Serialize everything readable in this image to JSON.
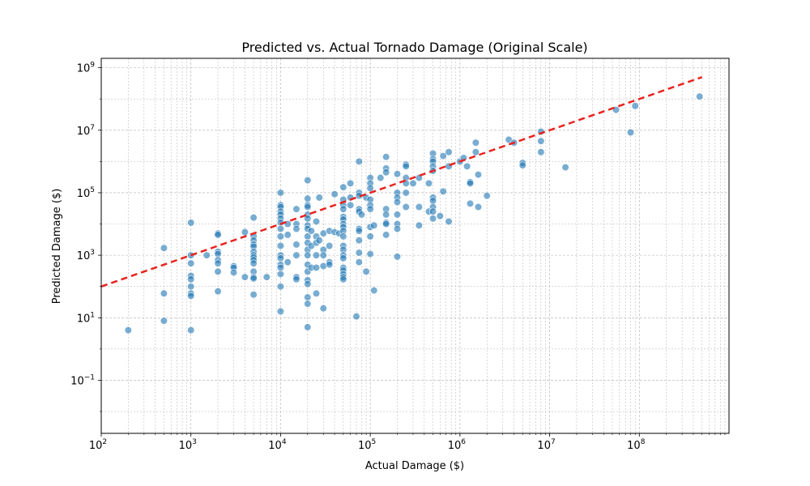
{
  "chart_data": {
    "type": "scatter",
    "title": "Predicted vs. Actual Tornado Damage (Original Scale)",
    "xlabel": "Actual Damage ($)",
    "ylabel": "Predicted Damage ($)",
    "xscale": "log",
    "yscale": "log",
    "xlim": [
      100,
      1000000000
    ],
    "ylim": [
      0.002,
      2000000000
    ],
    "x_ticks": [
      {
        "value": 100,
        "base": "10",
        "exp": "2"
      },
      {
        "value": 1000,
        "base": "10",
        "exp": "3"
      },
      {
        "value": 10000,
        "base": "10",
        "exp": "4"
      },
      {
        "value": 100000,
        "base": "10",
        "exp": "5"
      },
      {
        "value": 1000000,
        "base": "10",
        "exp": "6"
      },
      {
        "value": 10000000,
        "base": "10",
        "exp": "7"
      },
      {
        "value": 100000000,
        "base": "10",
        "exp": "8"
      }
    ],
    "y_ticks": [
      {
        "value": 0.1,
        "base": "10",
        "exp": "−1"
      },
      {
        "value": 10,
        "base": "10",
        "exp": "1"
      },
      {
        "value": 1000,
        "base": "10",
        "exp": "3"
      },
      {
        "value": 100000,
        "base": "10",
        "exp": "5"
      },
      {
        "value": 10000000,
        "base": "10",
        "exp": "7"
      },
      {
        "value": 1000000000,
        "base": "10",
        "exp": "9"
      }
    ],
    "grid": true,
    "point_color": "#1f77b4",
    "reference_line": {
      "style": "dashed",
      "color": "#e8231f",
      "x": [
        100,
        500000000
      ],
      "y": [
        100,
        500000000
      ]
    },
    "points": [
      {
        "x": 200,
        "y": 4
      },
      {
        "x": 500,
        "y": 1700
      },
      {
        "x": 500,
        "y": 60
      },
      {
        "x": 500,
        "y": 8
      },
      {
        "x": 1000,
        "y": 11000
      },
      {
        "x": 1000,
        "y": 1000
      },
      {
        "x": 1000,
        "y": 550
      },
      {
        "x": 1000,
        "y": 220
      },
      {
        "x": 1000,
        "y": 170
      },
      {
        "x": 1000,
        "y": 100
      },
      {
        "x": 1000,
        "y": 60
      },
      {
        "x": 1000,
        "y": 50
      },
      {
        "x": 1000,
        "y": 4
      },
      {
        "x": 1500,
        "y": 1000
      },
      {
        "x": 2000,
        "y": 5000
      },
      {
        "x": 2000,
        "y": 4500
      },
      {
        "x": 2000,
        "y": 1300
      },
      {
        "x": 2000,
        "y": 1100
      },
      {
        "x": 2000,
        "y": 700
      },
      {
        "x": 2000,
        "y": 550
      },
      {
        "x": 2000,
        "y": 300
      },
      {
        "x": 2000,
        "y": 70
      },
      {
        "x": 3000,
        "y": 450
      },
      {
        "x": 3000,
        "y": 400
      },
      {
        "x": 3000,
        "y": 280
      },
      {
        "x": 4000,
        "y": 5500
      },
      {
        "x": 4000,
        "y": 200
      },
      {
        "x": 5000,
        "y": 16000
      },
      {
        "x": 5000,
        "y": 4000
      },
      {
        "x": 5000,
        "y": 3000
      },
      {
        "x": 5000,
        "y": 2200
      },
      {
        "x": 5000,
        "y": 1900
      },
      {
        "x": 5000,
        "y": 1300
      },
      {
        "x": 5000,
        "y": 1000
      },
      {
        "x": 5000,
        "y": 850
      },
      {
        "x": 5000,
        "y": 700
      },
      {
        "x": 5000,
        "y": 550
      },
      {
        "x": 5000,
        "y": 300
      },
      {
        "x": 5000,
        "y": 200
      },
      {
        "x": 5000,
        "y": 180
      },
      {
        "x": 5000,
        "y": 55
      },
      {
        "x": 7000,
        "y": 200
      },
      {
        "x": 10000,
        "y": 100000
      },
      {
        "x": 10000,
        "y": 40000
      },
      {
        "x": 10000,
        "y": 35000
      },
      {
        "x": 10000,
        "y": 25000
      },
      {
        "x": 10000,
        "y": 20000
      },
      {
        "x": 10000,
        "y": 15000
      },
      {
        "x": 10000,
        "y": 11000
      },
      {
        "x": 10000,
        "y": 7000
      },
      {
        "x": 10000,
        "y": 4000
      },
      {
        "x": 10000,
        "y": 2000
      },
      {
        "x": 10000,
        "y": 1000
      },
      {
        "x": 10000,
        "y": 800
      },
      {
        "x": 10000,
        "y": 500
      },
      {
        "x": 10000,
        "y": 400
      },
      {
        "x": 10000,
        "y": 250
      },
      {
        "x": 10000,
        "y": 100
      },
      {
        "x": 10000,
        "y": 16
      },
      {
        "x": 12000,
        "y": 10000
      },
      {
        "x": 12000,
        "y": 4500
      },
      {
        "x": 12000,
        "y": 600
      },
      {
        "x": 15000,
        "y": 30000
      },
      {
        "x": 15000,
        "y": 10000
      },
      {
        "x": 15000,
        "y": 7000
      },
      {
        "x": 15000,
        "y": 2200
      },
      {
        "x": 15000,
        "y": 1000
      },
      {
        "x": 15000,
        "y": 200
      },
      {
        "x": 15000,
        "y": 170
      },
      {
        "x": 20000,
        "y": 250000
      },
      {
        "x": 20000,
        "y": 65000
      },
      {
        "x": 20000,
        "y": 40000
      },
      {
        "x": 20000,
        "y": 35000
      },
      {
        "x": 20000,
        "y": 20000
      },
      {
        "x": 20000,
        "y": 15000
      },
      {
        "x": 20000,
        "y": 9000
      },
      {
        "x": 20000,
        "y": 7000
      },
      {
        "x": 20000,
        "y": 4000
      },
      {
        "x": 20000,
        "y": 2500
      },
      {
        "x": 20000,
        "y": 1500
      },
      {
        "x": 20000,
        "y": 1000
      },
      {
        "x": 20000,
        "y": 500
      },
      {
        "x": 20000,
        "y": 300
      },
      {
        "x": 20000,
        "y": 160
      },
      {
        "x": 20000,
        "y": 120
      },
      {
        "x": 20000,
        "y": 45
      },
      {
        "x": 20000,
        "y": 28
      },
      {
        "x": 20000,
        "y": 5
      },
      {
        "x": 22000,
        "y": 6000
      },
      {
        "x": 22000,
        "y": 2000
      },
      {
        "x": 22000,
        "y": 400
      },
      {
        "x": 25000,
        "y": 12000
      },
      {
        "x": 25000,
        "y": 4000
      },
      {
        "x": 25000,
        "y": 2500
      },
      {
        "x": 25000,
        "y": 1000
      },
      {
        "x": 25000,
        "y": 400
      },
      {
        "x": 25000,
        "y": 60
      },
      {
        "x": 27000,
        "y": 70000
      },
      {
        "x": 27000,
        "y": 3000
      },
      {
        "x": 30000,
        "y": 5000
      },
      {
        "x": 30000,
        "y": 1500
      },
      {
        "x": 30000,
        "y": 1000
      },
      {
        "x": 30000,
        "y": 450
      },
      {
        "x": 30000,
        "y": 20
      },
      {
        "x": 35000,
        "y": 6000
      },
      {
        "x": 35000,
        "y": 2000
      },
      {
        "x": 35000,
        "y": 600
      },
      {
        "x": 35000,
        "y": 500
      },
      {
        "x": 40000,
        "y": 90000
      },
      {
        "x": 40000,
        "y": 5500
      },
      {
        "x": 45000,
        "y": 5000
      },
      {
        "x": 50000,
        "y": 150000
      },
      {
        "x": 50000,
        "y": 60000
      },
      {
        "x": 50000,
        "y": 40000
      },
      {
        "x": 50000,
        "y": 30000
      },
      {
        "x": 50000,
        "y": 17000
      },
      {
        "x": 50000,
        "y": 14000
      },
      {
        "x": 50000,
        "y": 10000
      },
      {
        "x": 50000,
        "y": 8000
      },
      {
        "x": 50000,
        "y": 6000
      },
      {
        "x": 50000,
        "y": 4000
      },
      {
        "x": 50000,
        "y": 2000
      },
      {
        "x": 50000,
        "y": 1500
      },
      {
        "x": 50000,
        "y": 1000
      },
      {
        "x": 50000,
        "y": 800
      },
      {
        "x": 50000,
        "y": 400
      },
      {
        "x": 50000,
        "y": 330
      },
      {
        "x": 50000,
        "y": 250
      },
      {
        "x": 50000,
        "y": 200
      },
      {
        "x": 50000,
        "y": 170
      },
      {
        "x": 60000,
        "y": 70000
      },
      {
        "x": 60000,
        "y": 40000
      },
      {
        "x": 60000,
        "y": 200000
      },
      {
        "x": 70000,
        "y": 11
      },
      {
        "x": 75000,
        "y": 1000000
      },
      {
        "x": 75000,
        "y": 100000
      },
      {
        "x": 75000,
        "y": 80000
      },
      {
        "x": 75000,
        "y": 30000
      },
      {
        "x": 75000,
        "y": 25000
      },
      {
        "x": 75000,
        "y": 7000
      },
      {
        "x": 75000,
        "y": 6000
      },
      {
        "x": 75000,
        "y": 3000
      },
      {
        "x": 75000,
        "y": 1200
      },
      {
        "x": 75000,
        "y": 600
      },
      {
        "x": 80000,
        "y": 20000
      },
      {
        "x": 90000,
        "y": 300
      },
      {
        "x": 90000,
        "y": 70000
      },
      {
        "x": 100000,
        "y": 300000
      },
      {
        "x": 100000,
        "y": 200000
      },
      {
        "x": 100000,
        "y": 140000
      },
      {
        "x": 100000,
        "y": 60000
      },
      {
        "x": 100000,
        "y": 40000
      },
      {
        "x": 100000,
        "y": 30000
      },
      {
        "x": 100000,
        "y": 8000
      },
      {
        "x": 100000,
        "y": 4000
      },
      {
        "x": 100000,
        "y": 1100
      },
      {
        "x": 110000,
        "y": 9000
      },
      {
        "x": 110000,
        "y": 75
      },
      {
        "x": 130000,
        "y": 300000
      },
      {
        "x": 150000,
        "y": 1400000
      },
      {
        "x": 150000,
        "y": 600000
      },
      {
        "x": 150000,
        "y": 450000
      },
      {
        "x": 150000,
        "y": 30000
      },
      {
        "x": 150000,
        "y": 20000
      },
      {
        "x": 150000,
        "y": 11000
      },
      {
        "x": 150000,
        "y": 10000
      },
      {
        "x": 150000,
        "y": 4500
      },
      {
        "x": 200000,
        "y": 400000
      },
      {
        "x": 200000,
        "y": 100000
      },
      {
        "x": 200000,
        "y": 70000
      },
      {
        "x": 200000,
        "y": 50000
      },
      {
        "x": 200000,
        "y": 20000
      },
      {
        "x": 200000,
        "y": 10000
      },
      {
        "x": 200000,
        "y": 7000
      },
      {
        "x": 200000,
        "y": 900
      },
      {
        "x": 250000,
        "y": 800000
      },
      {
        "x": 250000,
        "y": 700000
      },
      {
        "x": 250000,
        "y": 300000
      },
      {
        "x": 250000,
        "y": 200000
      },
      {
        "x": 250000,
        "y": 100000
      },
      {
        "x": 250000,
        "y": 35000
      },
      {
        "x": 300000,
        "y": 200000
      },
      {
        "x": 350000,
        "y": 300000
      },
      {
        "x": 350000,
        "y": 35000
      },
      {
        "x": 350000,
        "y": 9000
      },
      {
        "x": 450000,
        "y": 200000
      },
      {
        "x": 450000,
        "y": 25000
      },
      {
        "x": 500000,
        "y": 1800000
      },
      {
        "x": 500000,
        "y": 1200000
      },
      {
        "x": 500000,
        "y": 1000000
      },
      {
        "x": 500000,
        "y": 700000
      },
      {
        "x": 500000,
        "y": 500000
      },
      {
        "x": 500000,
        "y": 70000
      },
      {
        "x": 500000,
        "y": 55000
      },
      {
        "x": 500000,
        "y": 35000
      },
      {
        "x": 500000,
        "y": 25000
      },
      {
        "x": 500000,
        "y": 15000
      },
      {
        "x": 600000,
        "y": 18000
      },
      {
        "x": 650000,
        "y": 110000
      },
      {
        "x": 650000,
        "y": 1500000
      },
      {
        "x": 750000,
        "y": 2000000
      },
      {
        "x": 750000,
        "y": 700000
      },
      {
        "x": 750000,
        "y": 12000
      },
      {
        "x": 1000000,
        "y": 1000000
      },
      {
        "x": 1100000,
        "y": 1300000
      },
      {
        "x": 1200000,
        "y": 700000
      },
      {
        "x": 1300000,
        "y": 220000
      },
      {
        "x": 1300000,
        "y": 200000
      },
      {
        "x": 1300000,
        "y": 45000
      },
      {
        "x": 1500000,
        "y": 4000000
      },
      {
        "x": 1500000,
        "y": 2000000
      },
      {
        "x": 1600000,
        "y": 380000
      },
      {
        "x": 1600000,
        "y": 35000
      },
      {
        "x": 2000000,
        "y": 80000
      },
      {
        "x": 3500000,
        "y": 5000000
      },
      {
        "x": 4000000,
        "y": 4000000
      },
      {
        "x": 5000000,
        "y": 900000
      },
      {
        "x": 5000000,
        "y": 750000
      },
      {
        "x": 8000000,
        "y": 9000000
      },
      {
        "x": 8000000,
        "y": 4500000
      },
      {
        "x": 8000000,
        "y": 2000000
      },
      {
        "x": 15000000,
        "y": 650000
      },
      {
        "x": 55000000,
        "y": 45000000
      },
      {
        "x": 80000000,
        "y": 8500000
      },
      {
        "x": 90000000,
        "y": 60000000
      },
      {
        "x": 470000000,
        "y": 120000000
      }
    ]
  }
}
